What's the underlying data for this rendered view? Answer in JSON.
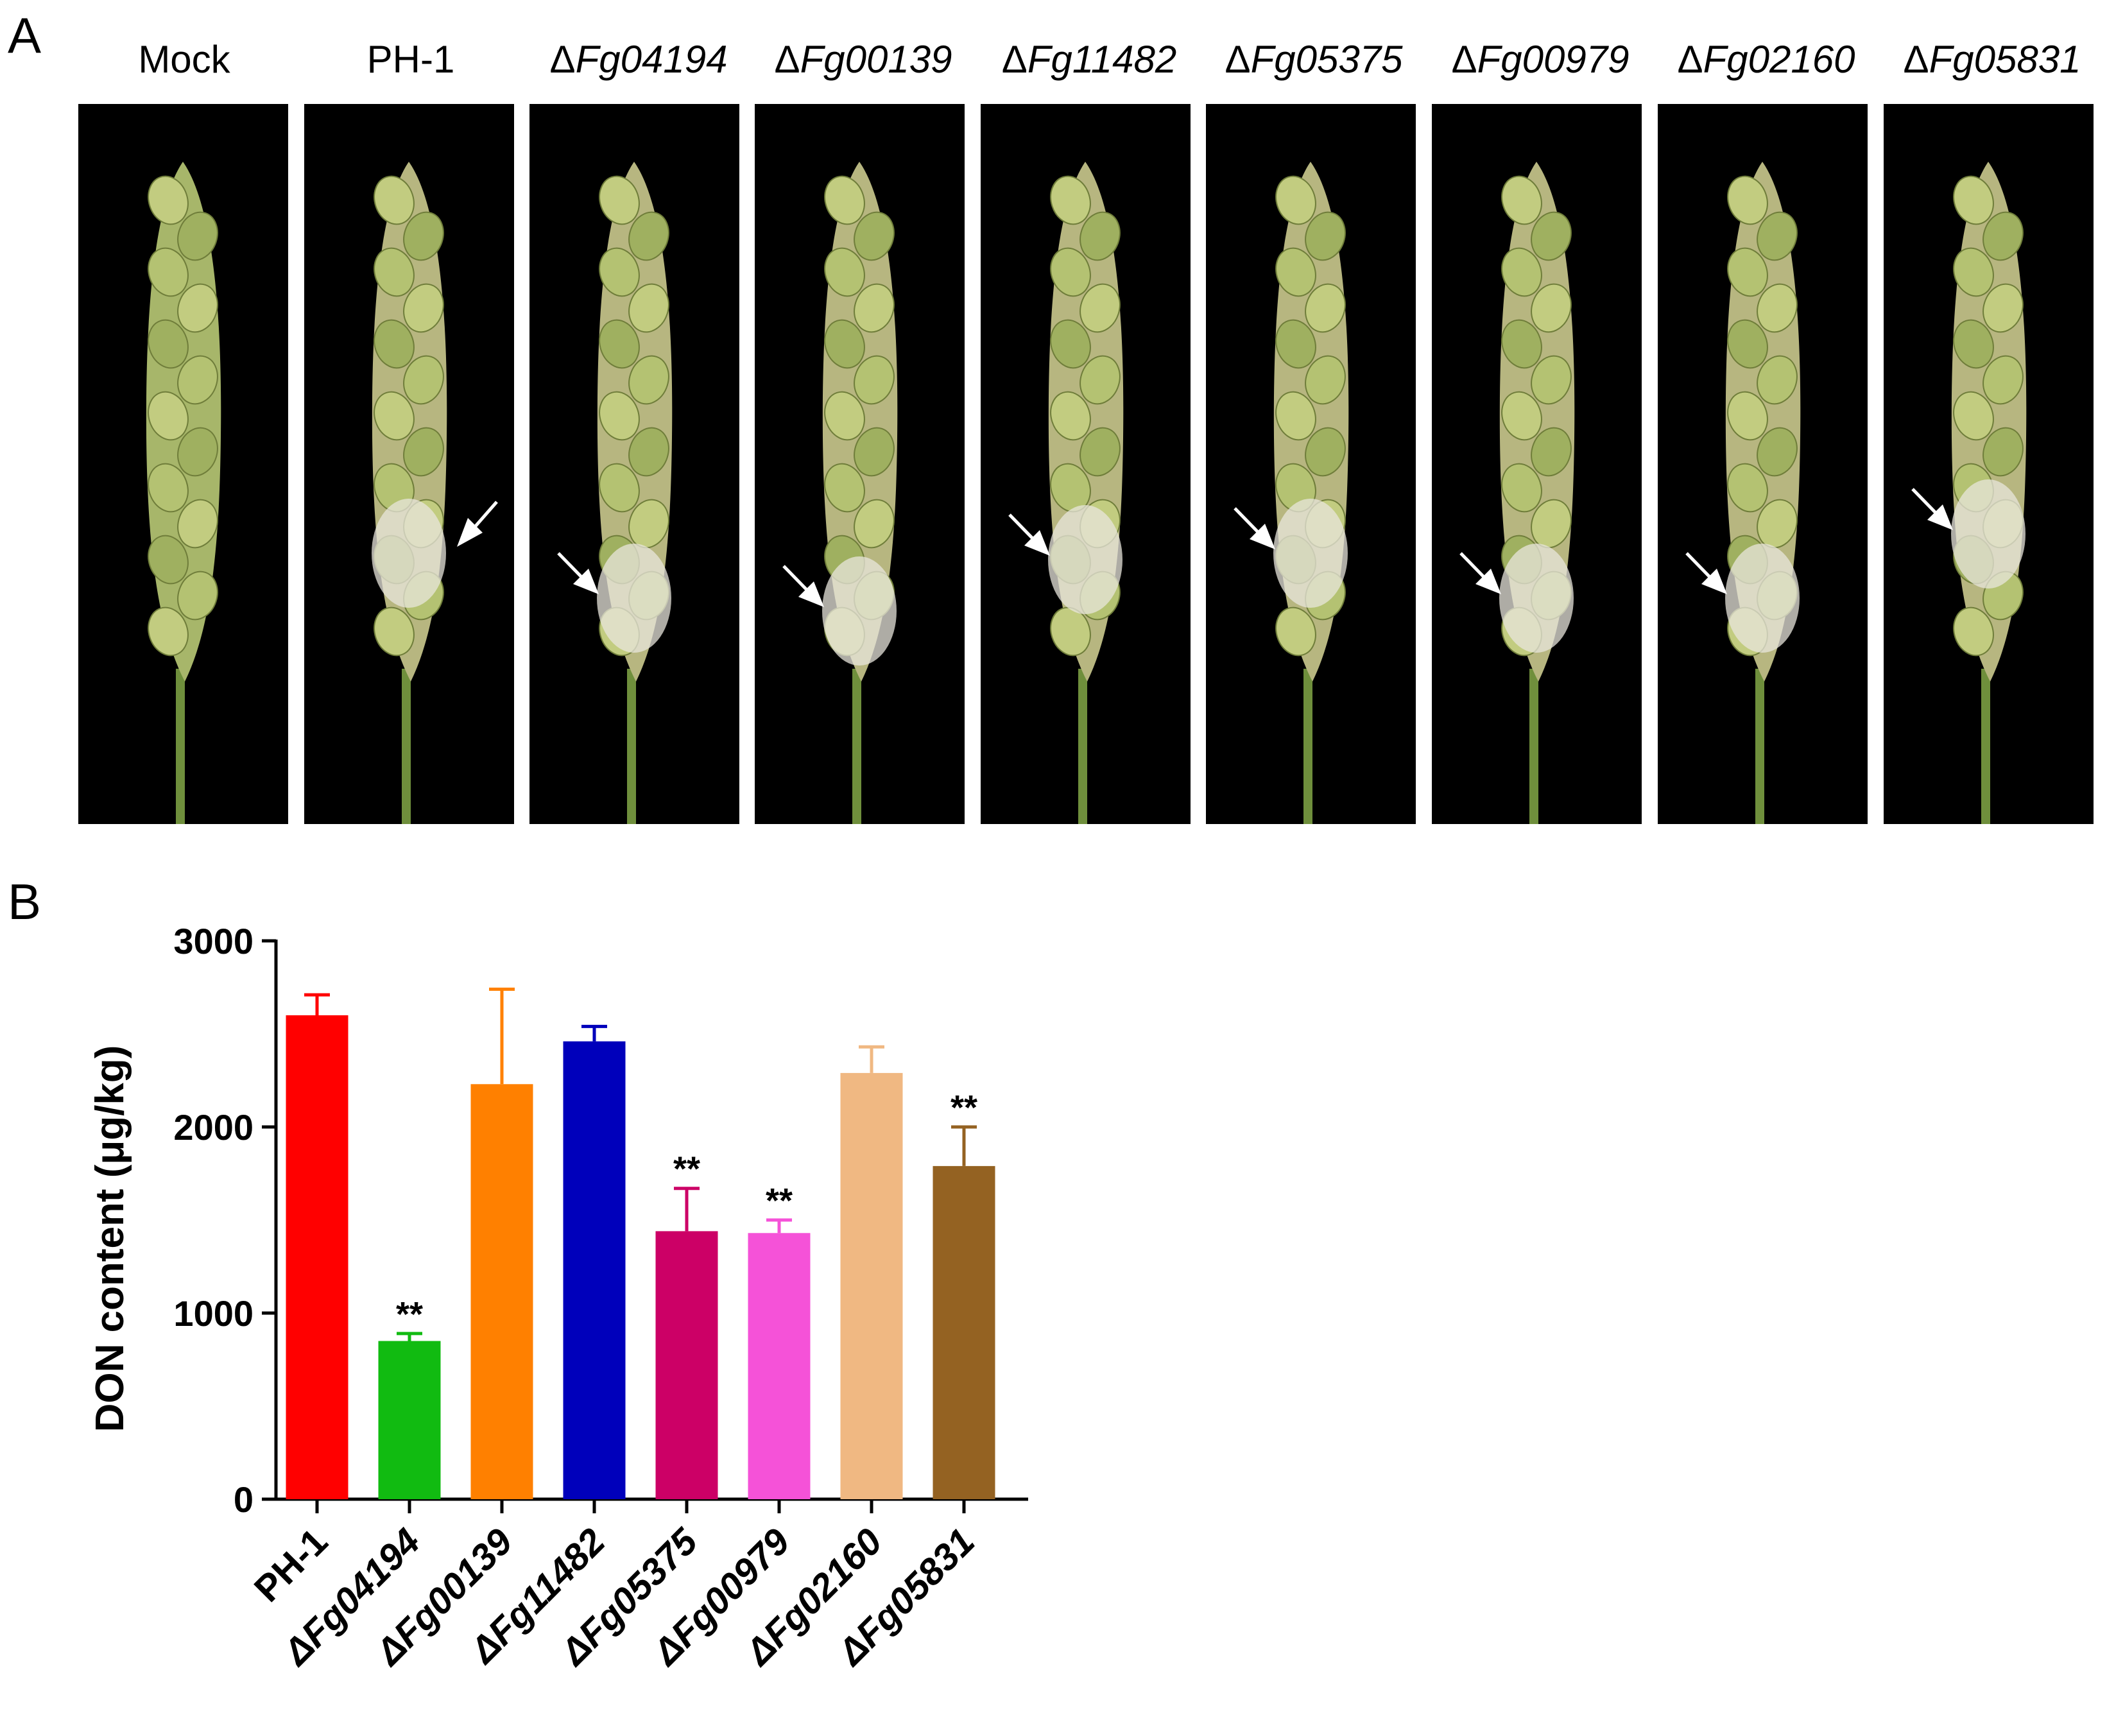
{
  "panels": {
    "a": "A",
    "b": "B"
  },
  "spikes": [
    {
      "prefix": "",
      "name": "Mock",
      "italic": false,
      "arrow": false,
      "infected": false
    },
    {
      "prefix": "",
      "name": "PH-1",
      "italic": false,
      "arrow": true,
      "infected": true
    },
    {
      "prefix": "Δ",
      "name": "Fg04194",
      "italic": true,
      "arrow": true,
      "infected": true
    },
    {
      "prefix": "Δ",
      "name": "Fg00139",
      "italic": true,
      "arrow": true,
      "infected": true
    },
    {
      "prefix": "Δ",
      "name": "Fg11482",
      "italic": true,
      "arrow": true,
      "infected": true
    },
    {
      "prefix": "Δ",
      "name": "Fg05375",
      "italic": true,
      "arrow": true,
      "infected": true
    },
    {
      "prefix": "Δ",
      "name": "Fg00979",
      "italic": true,
      "arrow": true,
      "infected": true
    },
    {
      "prefix": "Δ",
      "name": "Fg02160",
      "italic": true,
      "arrow": true,
      "infected": true
    },
    {
      "prefix": "Δ",
      "name": "Fg05831",
      "italic": true,
      "arrow": true,
      "infected": true
    }
  ],
  "chart_data": {
    "type": "bar",
    "ylabel": "DON content (μg/kg)",
    "ylim": [
      0,
      3000
    ],
    "yticks": [
      0,
      1000,
      2000,
      3000
    ],
    "categories": [
      "PH-1",
      "ΔFg04194",
      "ΔFg00139",
      "ΔFg11482",
      "ΔFg05375",
      "ΔFg00979",
      "ΔFg02160",
      "ΔFg05831"
    ],
    "values": [
      2600,
      850,
      2230,
      2460,
      1440,
      1430,
      2290,
      1790
    ],
    "errors": [
      110,
      40,
      510,
      80,
      230,
      70,
      140,
      210
    ],
    "significance": [
      "",
      "**",
      "",
      "",
      "**",
      "**",
      "",
      "**"
    ],
    "colors": [
      "#ff0000",
      "#11bb11",
      "#ff8000",
      "#0000bb",
      "#cc0066",
      "#f552d8",
      "#f0b882",
      "#946222"
    ],
    "grid": false,
    "legend": "none"
  }
}
